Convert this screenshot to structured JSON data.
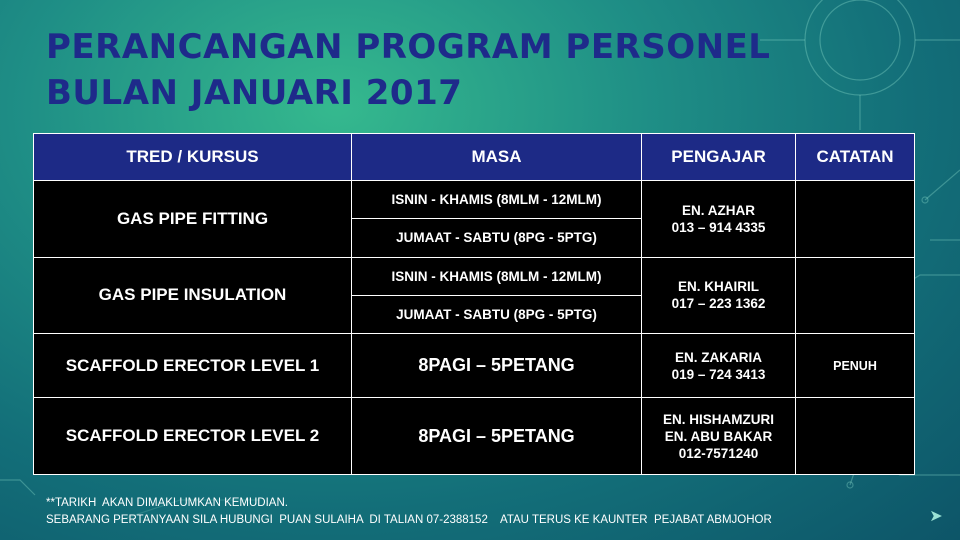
{
  "title": {
    "line1": "PERANCANGAN PROGRAM PERSONEL",
    "line2": "BULAN JANUARI 2017"
  },
  "table": {
    "headers": {
      "course": "TRED / KURSUS",
      "time": "MASA",
      "teacher": "PENGAJAR",
      "notes": "CATATAN"
    },
    "rows": [
      {
        "course": "GAS PIPE FITTING",
        "times": [
          "ISNIN - KHAMIS (8MLM - 12MLM)",
          "JUMAAT - SABTU (8PG - 5PTG)"
        ],
        "teacher": [
          "EN. AZHAR",
          "013 – 914 4335"
        ],
        "notes": ""
      },
      {
        "course": "GAS PIPE INSULATION",
        "times": [
          "ISNIN - KHAMIS (8MLM - 12MLM)",
          "JUMAAT - SABTU (8PG - 5PTG)"
        ],
        "teacher": [
          "EN. KHAIRIL",
          "017 – 223 1362"
        ],
        "notes": ""
      },
      {
        "course": "SCAFFOLD ERECTOR LEVEL 1",
        "times": [
          "8PAGI – 5PETANG"
        ],
        "teacher": [
          "EN. ZAKARIA",
          "019 – 724 3413"
        ],
        "notes": "PENUH"
      },
      {
        "course": "SCAFFOLD ERECTOR LEVEL 2",
        "times": [
          "8PAGI – 5PETANG"
        ],
        "teacher": [
          "EN. HISHAMZURI",
          "EN. ABU BAKAR",
          "012-7571240"
        ],
        "notes": ""
      }
    ]
  },
  "footer": {
    "line1": "**TARIKH  AKAN DIMAKLUMKAN KEMUDIAN.",
    "line2": "SEBARANG PERTANYAAN SILA HUBUNGI  PUAN SULAIHA  DI TALIAN 07-2388152    ATAU TERUS KE KAUNTER  PEJABAT ABMJOHOR"
  },
  "icons": {
    "next": "next-slide-arrow-icon"
  }
}
